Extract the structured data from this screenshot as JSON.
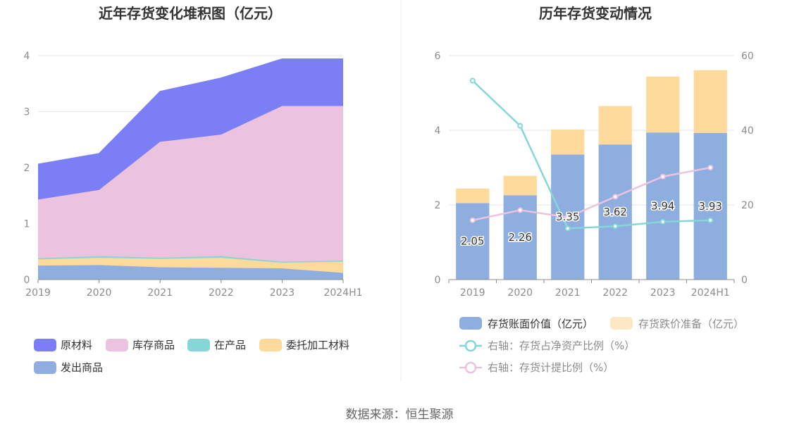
{
  "source_text": "数据来源：恒生聚源",
  "chart_data": [
    {
      "type": "area",
      "stacked": true,
      "title": "近年存货变化堆积图（亿元）",
      "x": [
        "2019",
        "2020",
        "2021",
        "2022",
        "2023",
        "2024H1"
      ],
      "yticks": [
        "0",
        "1",
        "2",
        "3",
        "4"
      ],
      "ylim": [
        0,
        4
      ],
      "grid": true,
      "legend_position": "bottom",
      "series": [
        {
          "name": "发出商品",
          "color": "#8eaee0",
          "values": [
            0.25,
            0.26,
            0.22,
            0.21,
            0.2,
            0.12
          ]
        },
        {
          "name": "委托加工材料",
          "color": "#fdd99b",
          "values": [
            0.11,
            0.13,
            0.15,
            0.18,
            0.1,
            0.2
          ]
        },
        {
          "name": "在产品",
          "color": "#86d6d8",
          "values": [
            0.02,
            0.03,
            0.02,
            0.03,
            0.02,
            0.02
          ]
        },
        {
          "name": "库存商品",
          "color": "#ecc3df",
          "values": [
            1.05,
            1.18,
            2.07,
            2.17,
            2.78,
            2.76
          ]
        },
        {
          "name": "原材料",
          "color": "#7b7ef5",
          "values": [
            0.63,
            0.65,
            0.9,
            1.01,
            0.84,
            0.84
          ]
        }
      ]
    },
    {
      "type": "bar",
      "stacked": true,
      "title": "历年存货变动情况",
      "categories": [
        "2019",
        "2020",
        "2021",
        "2022",
        "2023",
        "2024H1"
      ],
      "yticks_left": [
        "0",
        "2",
        "4",
        "6"
      ],
      "ylim_left": [
        0,
        6
      ],
      "yticks_right": [
        "0",
        "20",
        "40",
        "60"
      ],
      "ylim_right": [
        0,
        60
      ],
      "grid": true,
      "legend_position": "bottom",
      "series": [
        {
          "name": "存货账面价值（亿元）",
          "kind": "bar",
          "axis": "left",
          "color": "#8eaee0",
          "values": [
            2.05,
            2.26,
            3.35,
            3.62,
            3.94,
            3.93
          ],
          "labels": [
            "2.05",
            "2.26",
            "3.35",
            "3.62",
            "3.94",
            "3.93"
          ]
        },
        {
          "name": "存货跌价准备（亿元）",
          "kind": "bar",
          "axis": "left",
          "color": "#fdd99b",
          "values": [
            0.39,
            0.52,
            0.67,
            1.03,
            1.5,
            1.68
          ]
        },
        {
          "name": "右轴：存货占净资产比例（%）",
          "kind": "line",
          "axis": "right",
          "color": "#86d6d8",
          "values": [
            53.3,
            41.2,
            13.7,
            14.3,
            15.5,
            15.9
          ]
        },
        {
          "name": "右轴：存货计提比例（%）",
          "kind": "line",
          "axis": "right",
          "color": "#ecc3df",
          "values": [
            15.9,
            18.6,
            16.7,
            22.2,
            27.6,
            30.0
          ]
        }
      ]
    }
  ]
}
